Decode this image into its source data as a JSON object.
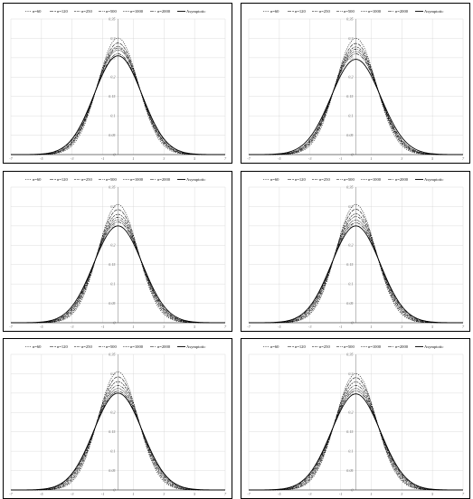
{
  "chart_data": {
    "type": "line",
    "panel_count": 6,
    "grid": true,
    "legend_position": "top",
    "xlim": [
      -7,
      7
    ],
    "ylim": [
      0,
      0.35
    ],
    "x_ticks": [
      "-7",
      "-5",
      "-3",
      "-1",
      "1",
      "3",
      "5",
      "7"
    ],
    "y_ticks": [
      "0",
      "0.05",
      "0.1",
      "0.15",
      "0.2",
      "0.25",
      "0.3",
      "0.35"
    ],
    "series_labels": [
      "n=60",
      "n=120",
      "n=250",
      "n=500",
      "n=1000",
      "n=2000",
      "Asymptotic"
    ],
    "panels": [
      {
        "id": "panel-1",
        "peaks": [
          0.301,
          0.288,
          0.279,
          0.275,
          0.27,
          0.26,
          0.255
        ]
      },
      {
        "id": "panel-2",
        "peaks": [
          0.3,
          0.287,
          0.278,
          0.272,
          0.266,
          0.26,
          0.246
        ]
      },
      {
        "id": "panel-3",
        "peaks": [
          0.305,
          0.292,
          0.28,
          0.272,
          0.266,
          0.26,
          0.25
        ]
      },
      {
        "id": "panel-4",
        "peaks": [
          0.305,
          0.293,
          0.281,
          0.274,
          0.265,
          0.258,
          0.25
        ]
      },
      {
        "id": "panel-5",
        "peaks": [
          0.305,
          0.292,
          0.28,
          0.27,
          0.262,
          0.255,
          0.25
        ]
      },
      {
        "id": "panel-6",
        "peaks": [
          0.3,
          0.29,
          0.279,
          0.27,
          0.262,
          0.256,
          0.248
        ]
      }
    ]
  }
}
